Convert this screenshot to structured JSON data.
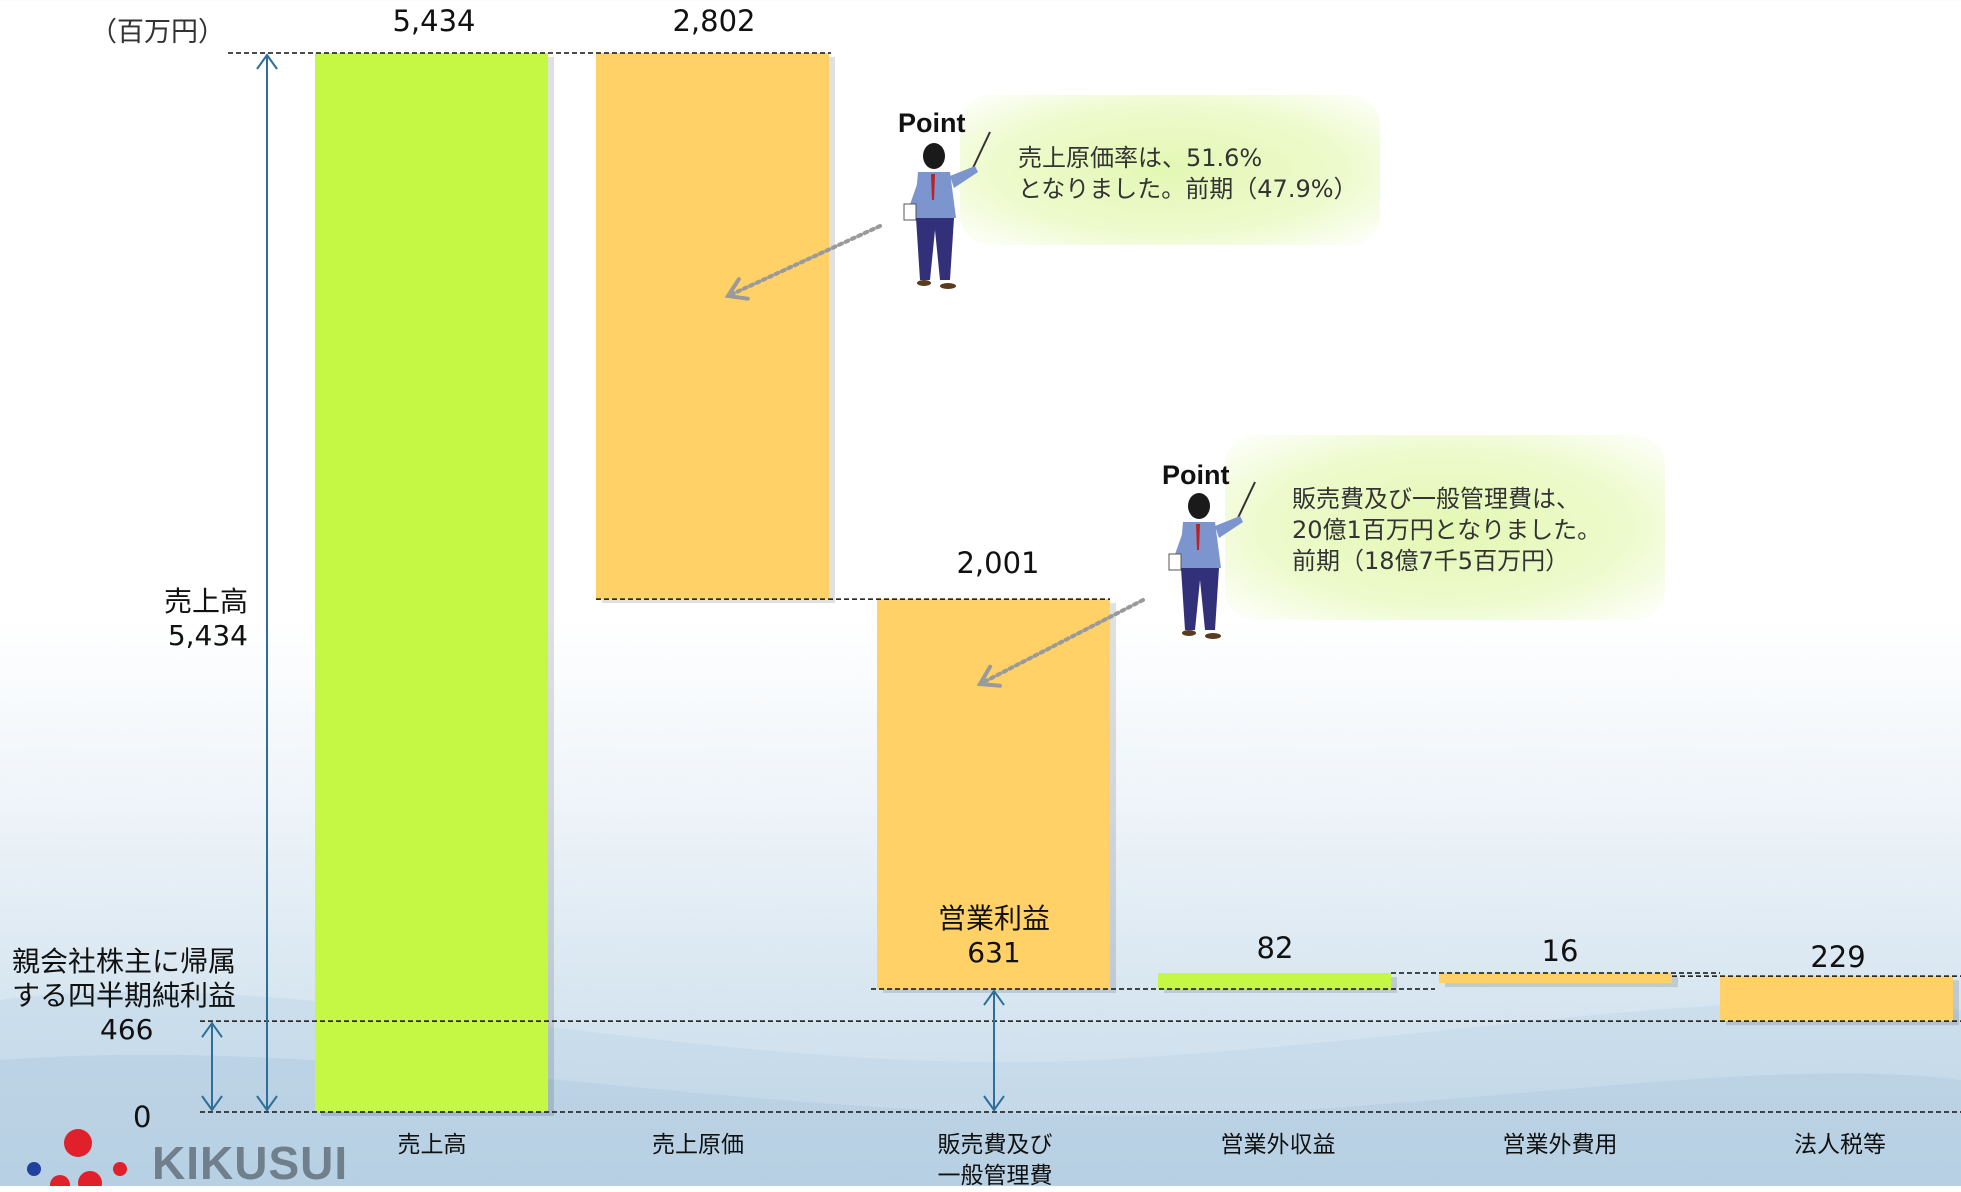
{
  "chart_data": {
    "type": "waterfall",
    "unit_label": "（百万円）",
    "ylim": [
      0,
      5434
    ],
    "categories": [
      "売上高",
      "売上原価",
      "販売費及び\n一般管理費",
      "営業外収益",
      "営業外費用",
      "法人税等"
    ],
    "bars": [
      {
        "category": "売上高",
        "value": 5434,
        "label": "5,434",
        "kind": "total",
        "start": 0,
        "end": 5434,
        "color": "#c5f745"
      },
      {
        "category": "売上原価",
        "value": 2802,
        "label": "2,802",
        "kind": "decrease",
        "start": 5434,
        "end": 2632,
        "color": "#ffd166"
      },
      {
        "category": "販売費及び一般管理費",
        "value": 2001,
        "label": "2,001",
        "kind": "decrease",
        "start": 2632,
        "end": 631,
        "color": "#ffd166"
      },
      {
        "category": "営業外収益",
        "value": 82,
        "label": "82",
        "kind": "increase",
        "start": 631,
        "end": 713,
        "color": "#c5f745"
      },
      {
        "category": "営業外費用",
        "value": 16,
        "label": "16",
        "kind": "decrease",
        "start": 713,
        "end": 697,
        "color": "#ffd166"
      },
      {
        "category": "法人税等",
        "value": 229,
        "label": "229",
        "kind": "decrease",
        "start": 697,
        "end": 466,
        "color": "#ffd166"
      }
    ],
    "markers": {
      "sales": {
        "label": "売上高",
        "value_label": "5,434",
        "value": 5434
      },
      "operating_profit": {
        "label": "営業利益",
        "value_label": "631",
        "value": 631
      },
      "net_income": {
        "label_line1": "親会社株主に帰属",
        "label_line2": "する四半期純利益",
        "value_label": "466",
        "value": 466
      },
      "zero": {
        "value_label": "0",
        "value": 0
      }
    }
  },
  "callouts": [
    {
      "title": "Point",
      "lines": [
        "売上原価率は、51.6%",
        "となりました。前期（47.9%）"
      ]
    },
    {
      "title": "Point",
      "lines": [
        "販売費及び一般管理費は、",
        "20億1百万円となりました。",
        "前期（18億7千5百万円）"
      ]
    }
  ],
  "logo": {
    "text": "KIKUSUI"
  },
  "colors": {
    "green": "#c5f745",
    "orange": "#ffd166",
    "arrow": "#2e6f9a",
    "dash": "#111111"
  }
}
